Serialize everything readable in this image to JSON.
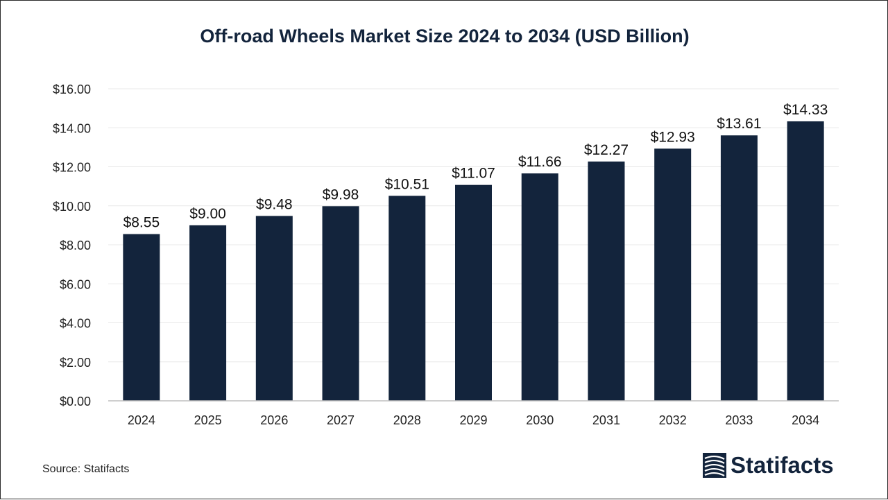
{
  "chart_data": {
    "type": "bar",
    "title": "Off-road Wheels Market Size 2024 to 2034 (USD Billion)",
    "categories": [
      "2024",
      "2025",
      "2026",
      "2027",
      "2028",
      "2029",
      "2030",
      "2031",
      "2032",
      "2033",
      "2034"
    ],
    "values": [
      8.55,
      9.0,
      9.48,
      9.98,
      10.51,
      11.07,
      11.66,
      12.27,
      12.93,
      13.61,
      14.33
    ],
    "value_labels": [
      "$8.55",
      "$9.00",
      "$9.48",
      "$9.98",
      "$10.51",
      "$11.07",
      "$11.66",
      "$12.27",
      "$12.93",
      "$13.61",
      "$14.33"
    ],
    "y_ticks": [
      0,
      2,
      4,
      6,
      8,
      10,
      12,
      14,
      16
    ],
    "y_tick_labels": [
      "$0.00",
      "$2.00",
      "$4.00",
      "$6.00",
      "$8.00",
      "$10.00",
      "$12.00",
      "$14.00",
      "$16.00"
    ],
    "ylim": [
      0,
      16
    ],
    "xlabel": "",
    "ylabel": "",
    "grid": true,
    "legend": "none",
    "bar_color": "#13243c",
    "grid_color": "#e8e8e8",
    "axis_color": "#bfbfbf"
  },
  "source": "Source: Statifacts",
  "brand": {
    "name": "Statifacts",
    "color": "#13243c"
  }
}
